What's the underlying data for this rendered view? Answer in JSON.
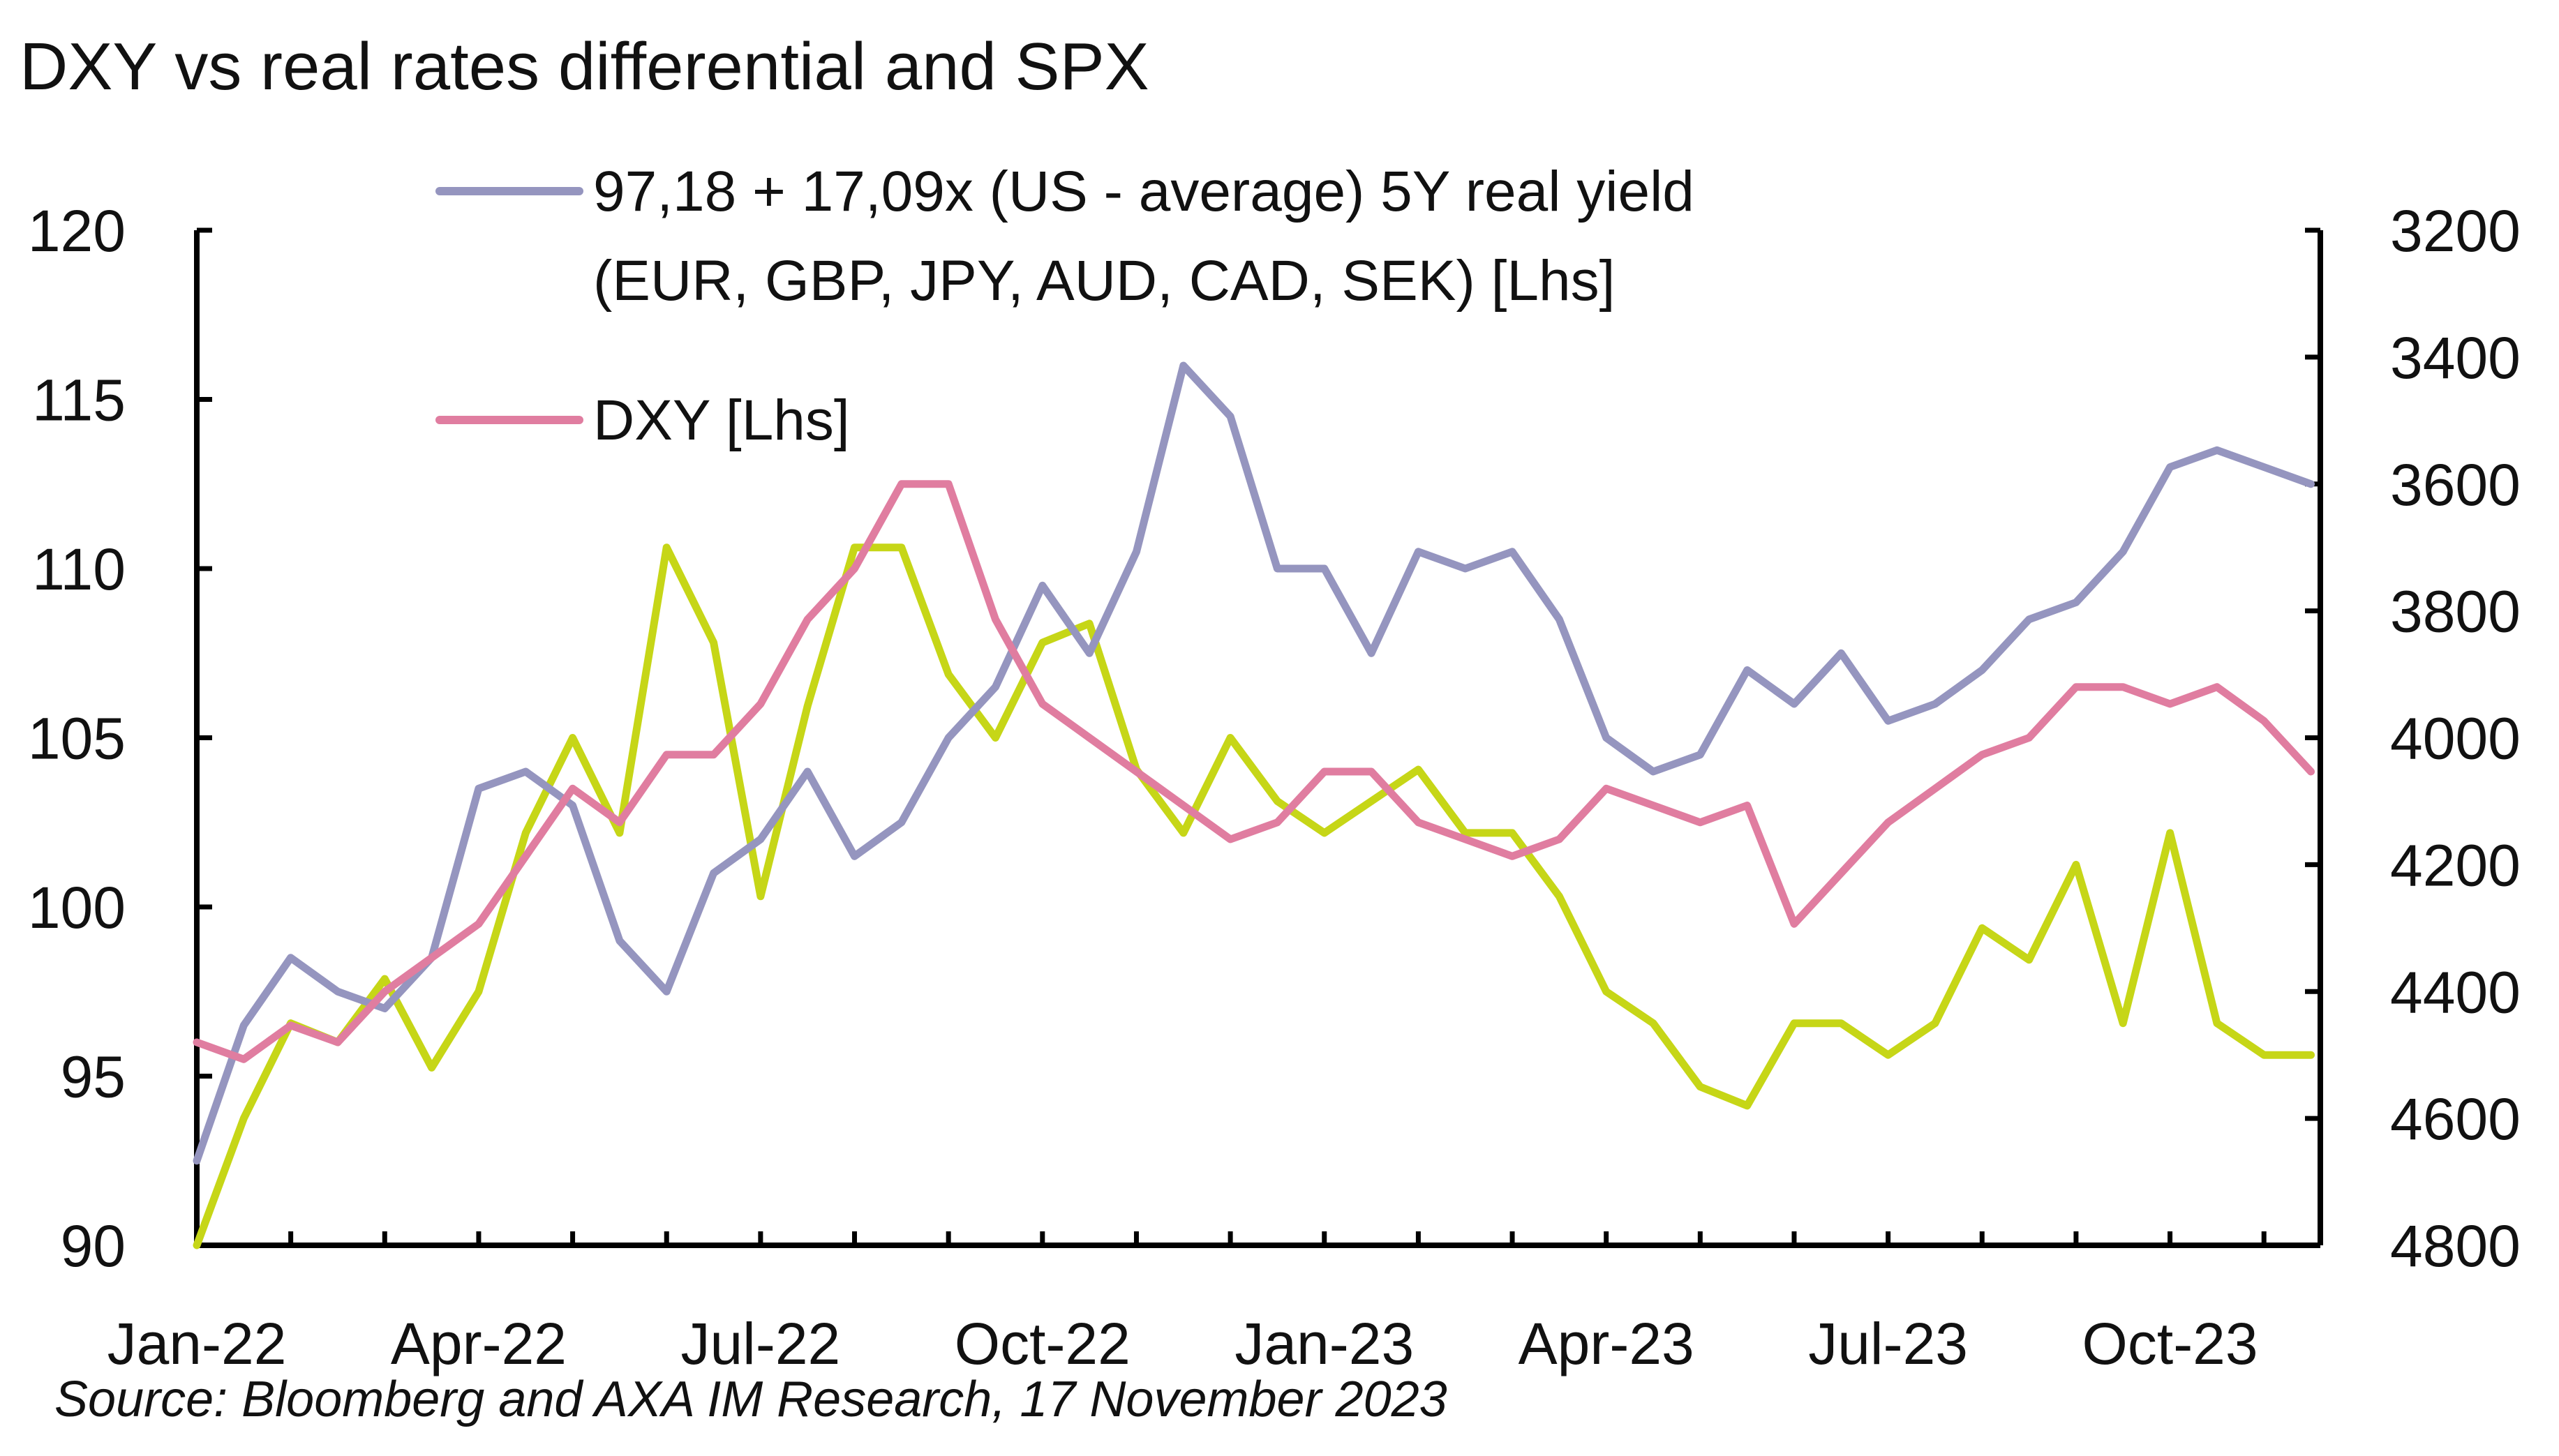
{
  "title": "DXY vs real rates differential and SPX",
  "source": "Source: Bloomberg and AXA IM Research, 17 November 2023",
  "chart_data": {
    "type": "line",
    "title": "DXY vs real rates differential and SPX",
    "x_labels": [
      "Jan-22",
      "Apr-22",
      "Jul-22",
      "Oct-22",
      "Jan-23",
      "Apr-23",
      "Jul-23",
      "Oct-23"
    ],
    "y_left": {
      "ticks": [
        "90",
        "95",
        "100",
        "105",
        "110",
        "115",
        "120"
      ],
      "lim": [
        90,
        120
      ]
    },
    "y_right": {
      "ticks": [
        "3200",
        "3400",
        "3600",
        "3800",
        "4000",
        "4200",
        "4400",
        "4600",
        "4800"
      ],
      "lim": [
        3200,
        4800
      ],
      "inverted": true
    },
    "grid": false,
    "legend_position": "top-left",
    "series": [
      {
        "name": "97,18 + 17,09x (US - average) 5Y real yield (EUR, GBP, JPY, AUD, CAD, SEK) [Lhs]",
        "legend_lines": [
          "97,18 + 17,09x (US - average) 5Y real yield",
          "(EUR, GBP, JPY, AUD, CAD, SEK) [Lhs]"
        ],
        "color": "#9595bf",
        "axis": "left",
        "months": [
          0,
          0.5,
          1,
          1.5,
          2,
          2.5,
          3,
          3.5,
          4,
          4.5,
          5,
          5.5,
          6,
          6.5,
          7,
          7.5,
          8,
          8.5,
          9,
          9.5,
          10,
          10.5,
          11,
          11.5,
          12,
          12.5,
          13,
          13.5,
          14,
          14.5,
          15,
          15.5,
          16,
          16.5,
          17,
          17.5,
          18,
          18.5,
          19,
          19.5,
          20,
          20.5,
          21,
          21.5,
          22,
          22.5
        ],
        "values": [
          92.5,
          96.5,
          98.5,
          97.5,
          97.0,
          98.5,
          103.5,
          104.0,
          103.0,
          99.0,
          97.5,
          101.0,
          102.0,
          104.0,
          101.5,
          102.5,
          105.0,
          106.5,
          109.5,
          107.5,
          110.5,
          116.0,
          114.5,
          110.0,
          110.0,
          107.5,
          110.5,
          110.0,
          110.5,
          108.5,
          105.0,
          104.0,
          104.5,
          107.0,
          106.0,
          107.5,
          105.5,
          106.0,
          107.0,
          108.5,
          109.0,
          110.5,
          113.0,
          113.5,
          113.0,
          112.5
        ]
      },
      {
        "name": "DXY [Lhs]",
        "legend_lines": [
          "DXY [Lhs]"
        ],
        "color": "#e07da0",
        "axis": "left",
        "months": [
          0,
          0.5,
          1,
          1.5,
          2,
          2.5,
          3,
          3.5,
          4,
          4.5,
          5,
          5.5,
          6,
          6.5,
          7,
          7.5,
          8,
          8.5,
          9,
          9.5,
          10,
          10.5,
          11,
          11.5,
          12,
          12.5,
          13,
          13.5,
          14,
          14.5,
          15,
          15.5,
          16,
          16.5,
          17,
          17.5,
          18,
          18.5,
          19,
          19.5,
          20,
          20.5,
          21,
          21.5,
          22,
          22.5
        ],
        "values": [
          96.0,
          95.5,
          96.5,
          96.0,
          97.5,
          98.5,
          99.5,
          101.5,
          103.5,
          102.5,
          104.5,
          104.5,
          106.0,
          108.5,
          110.0,
          112.5,
          112.5,
          108.5,
          106.0,
          105.0,
          104.0,
          103.0,
          102.0,
          102.5,
          104.0,
          104.0,
          102.5,
          102.0,
          101.5,
          102.0,
          103.5,
          103.0,
          102.5,
          103.0,
          99.5,
          101.0,
          102.5,
          103.5,
          104.5,
          105.0,
          106.5,
          106.5,
          106.0,
          106.5,
          105.5,
          104.0
        ]
      },
      {
        "name": "SPX",
        "color": "#c6d617",
        "axis": "right",
        "months": [
          0,
          0.5,
          1,
          1.5,
          2,
          2.5,
          3,
          3.5,
          4,
          4.5,
          5,
          5.5,
          6,
          6.5,
          7,
          7.5,
          8,
          8.5,
          9,
          9.5,
          10,
          10.5,
          11,
          11.5,
          12,
          12.5,
          13,
          13.5,
          14,
          14.5,
          15,
          15.5,
          16,
          16.5,
          17,
          17.5,
          18,
          18.5,
          19,
          19.5,
          20,
          20.5,
          21,
          21.5,
          22,
          22.5
        ],
        "values": [
          4800,
          4600,
          4450,
          4480,
          4380,
          4520,
          4400,
          4150,
          4000,
          4150,
          3700,
          3850,
          4250,
          3950,
          3700,
          3700,
          3900,
          4000,
          3850,
          3820,
          4050,
          4150,
          4000,
          4100,
          4150,
          4100,
          4050,
          4150,
          4150,
          4250,
          4400,
          4450,
          4550,
          4580,
          4450,
          4450,
          4500,
          4450,
          4300,
          4350,
          4200,
          4450,
          4150,
          4450,
          4500,
          4500
        ]
      }
    ]
  }
}
